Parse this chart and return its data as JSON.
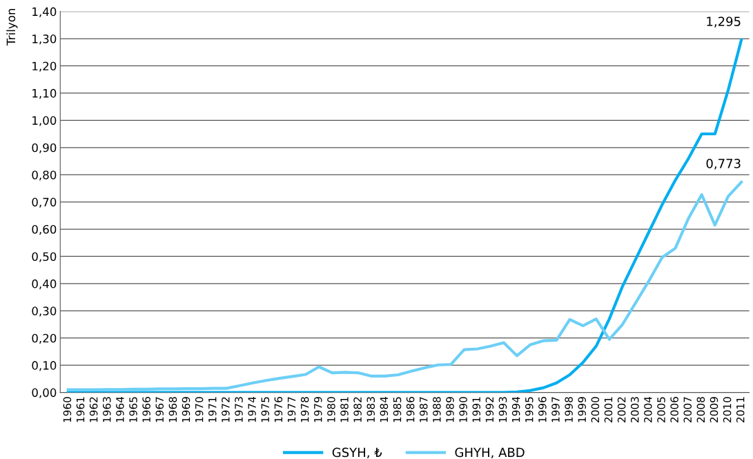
{
  "chart_data": {
    "type": "line",
    "ylabel": "Trilyon",
    "categories": [
      "1960",
      "1961",
      "1962",
      "1963",
      "1964",
      "1965",
      "1966",
      "1967",
      "1968",
      "1969",
      "1970",
      "1971",
      "1972",
      "1973",
      "1974",
      "1975",
      "1976",
      "1977",
      "1978",
      "1979",
      "1980",
      "1981",
      "1982",
      "1983",
      "1984",
      "1985",
      "1986",
      "1987",
      "1988",
      "1989",
      "1990",
      "1991",
      "1992",
      "1993",
      "1994",
      "1995",
      "1996",
      "1997",
      "1998",
      "1999",
      "2000",
      "2001",
      "2002",
      "2003",
      "2004",
      "2005",
      "2006",
      "2007",
      "2008",
      "2009",
      "2010",
      "2011"
    ],
    "series": [
      {
        "name": "GSYH, ₺",
        "color": "#00aeef",
        "values": [
          0,
          0,
          0,
          0,
          0,
          0,
          0,
          0,
          0,
          0,
          0,
          0,
          0,
          0,
          0,
          0,
          0,
          0,
          0,
          0,
          0,
          0,
          0,
          0,
          0,
          0,
          0,
          0,
          0,
          0,
          0,
          0,
          0,
          0,
          0.002,
          0.007,
          0.017,
          0.035,
          0.065,
          0.11,
          0.17,
          0.27,
          0.39,
          0.49,
          0.59,
          0.69,
          0.78,
          0.86,
          0.95,
          0.95,
          1.11,
          1.295
        ]
      },
      {
        "name": "GHYH, ABD",
        "color": "#6dcff6",
        "values": [
          0.01,
          0.01,
          0.01,
          0.011,
          0.011,
          0.012,
          0.012,
          0.013,
          0.013,
          0.014,
          0.014,
          0.015,
          0.015,
          0.025,
          0.035,
          0.044,
          0.052,
          0.059,
          0.066,
          0.094,
          0.072,
          0.074,
          0.072,
          0.06,
          0.06,
          0.065,
          0.078,
          0.09,
          0.101,
          0.103,
          0.157,
          0.16,
          0.17,
          0.183,
          0.135,
          0.175,
          0.19,
          0.192,
          0.268,
          0.245,
          0.27,
          0.195,
          0.25,
          0.33,
          0.41,
          0.496,
          0.53,
          0.64,
          0.727,
          0.615,
          0.72,
          0.773
        ]
      }
    ],
    "ylim": [
      0,
      1.4
    ],
    "yticks": [
      {
        "value": 0,
        "label": "0,00"
      },
      {
        "value": 0.1,
        "label": "0,10"
      },
      {
        "value": 0.2,
        "label": "0,20"
      },
      {
        "value": 0.3,
        "label": "0,30"
      },
      {
        "value": 0.4,
        "label": "0,40"
      },
      {
        "value": 0.5,
        "label": "0,50"
      },
      {
        "value": 0.6,
        "label": "0,60"
      },
      {
        "value": 0.7,
        "label": "0,70"
      },
      {
        "value": 0.8,
        "label": "0,80"
      },
      {
        "value": 0.9,
        "label": "0,90"
      },
      {
        "value": 1.0,
        "label": "1,00"
      },
      {
        "value": 1.1,
        "label": "1,10"
      },
      {
        "value": 1.2,
        "label": "1,20"
      },
      {
        "value": 1.3,
        "label": "1,30"
      },
      {
        "value": 1.4,
        "label": "1,40"
      }
    ],
    "annotations": [
      {
        "text": "1,295",
        "x": "2011",
        "y": 1.295
      },
      {
        "text": "0,773",
        "x": "2011",
        "y": 0.773
      }
    ],
    "grid": "y",
    "legend": "bottom",
    "marker": "none",
    "line_style": "solid"
  }
}
